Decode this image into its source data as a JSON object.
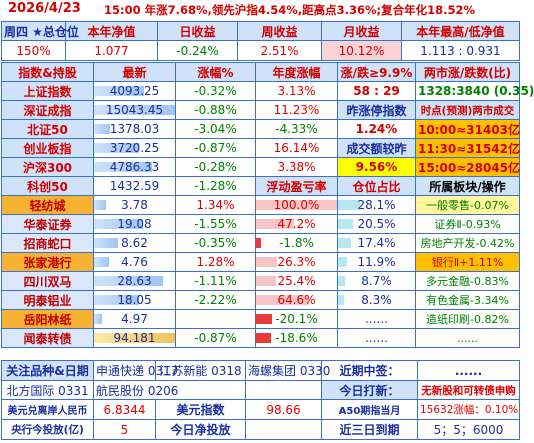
{
  "title": {
    "date": "2026/4/23",
    "message": "15:00 年涨7.68%,领先沪指4.54%,距高点3.36%;复合年化18.52%"
  },
  "summary": {
    "headers": [
      "周四 ★总仓位",
      "本年净值",
      "日收益",
      "周收益",
      "月收益",
      "本年最高/低净值"
    ],
    "values": [
      "150%",
      "1.077",
      "-0.24%",
      "2.51%",
      "10.12%",
      "1.113 : 0.931"
    ]
  },
  "index_header": [
    "指数&持股",
    "最新",
    "涨幅%",
    "年度涨幅",
    "涨/跌≥9.9%",
    "两市涨/跌数(比)"
  ],
  "indices": [
    {
      "name": "上证指数",
      "price": "4093.25",
      "chg": "-0.32%",
      "ytd": "3.13%",
      "c5": "58 : 29",
      "c6": "1328:3840 (0.35)"
    },
    {
      "name": "深证成指",
      "price": "15043.45",
      "chg": "-0.88%",
      "ytd": "11.23%",
      "c5": "昨涨停指数",
      "c6": "时点(预测)两市成交"
    },
    {
      "name": "北证50",
      "price": "1378.03",
      "chg": "-3.04%",
      "ytd": "-4.33%",
      "c5": "1.24%",
      "c6": "10:00≈31403亿"
    },
    {
      "name": "创业板指",
      "price": "3720.25",
      "chg": "-0.87%",
      "ytd": "16.14%",
      "c5": "成交额较昨",
      "c6": "11:30≈31542亿"
    },
    {
      "name": "沪深300",
      "price": "4786.33",
      "chg": "-0.28%",
      "ytd": "3.38%",
      "c5": "9.56%",
      "c6": "15:00≈28045亿"
    },
    {
      "name": "科创50",
      "price": "1432.59",
      "chg": "-1.28%",
      "ytd": "浮动盈亏率",
      "c5": "仓位占比",
      "c6": "所属板块/操作"
    }
  ],
  "stocks": [
    {
      "name": "轻纺城",
      "price": "3.78",
      "chg": "1.34%",
      "float": "100.0%",
      "fv": 1.0,
      "pos": "28.1%",
      "pv": 0.28,
      "sector": "一般零售-0.07%"
    },
    {
      "name": "华泰证券",
      "price": "19.08",
      "chg": "-1.55%",
      "float": "47.2%",
      "fv": 0.47,
      "pos": "20.5%",
      "pv": 0.2,
      "sector": "证券Ⅱ-0.93%"
    },
    {
      "name": "招商蛇口",
      "price": "8.62",
      "chg": "-0.35%",
      "float": "-1.8%",
      "fv": 0.02,
      "pos": "17.4%",
      "pv": 0.17,
      "sector": "房地产开发-0.42%"
    },
    {
      "name": "张家港行",
      "price": "4.76",
      "chg": "1.28%",
      "float": "26.3%",
      "fv": 0.26,
      "pos": "11.9%",
      "pv": 0.12,
      "sector": "银行Ⅱ+1.11%"
    },
    {
      "name": "四川双马",
      "price": "28.63",
      "chg": "-1.11%",
      "float": "25.4%",
      "fv": 0.25,
      "pos": "8.7%",
      "pv": 0.09,
      "sector": "多元金融-0.83%"
    },
    {
      "name": "明泰铝业",
      "price": "18.05",
      "chg": "-2.22%",
      "float": "64.6%",
      "fv": 0.65,
      "pos": "8.3%",
      "pv": 0.08,
      "sector": "有色金属-3.34%"
    },
    {
      "name": "岳阳林纸",
      "price": "4.97",
      "chg": "",
      "float": "-20.1%",
      "fv": 0.2,
      "pos": "......",
      "pv": 0,
      "sector": "造纸印刷-0.82%"
    },
    {
      "name": "闻泰转债",
      "price": "94.181",
      "chg": "-0.87%",
      "float": "-18.6%",
      "fv": 0.19,
      "pos": "......",
      "pv": 0,
      "sector": "......"
    }
  ],
  "watch": {
    "label": "关注品种&日期",
    "items": [
      "申通快递 0317",
      "江苏新能 0318",
      "海螺集团 0330"
    ],
    "items2": [
      "北方国际 0331",
      "航民股份 0206"
    ],
    "near_sign": "近期中签：",
    "near_val": "......",
    "today_label": "今日打新：",
    "today_val": "无新股和可转债申购"
  },
  "footer": {
    "r1": [
      "美元兑离岸人民币",
      "6.8344",
      "美元指数",
      "98.66",
      "A50期指当月",
      "15632涨幅：0.10%"
    ],
    "r2": [
      "央行今投放(亿)",
      "5",
      "今日净投放",
      "",
      "近三日到期",
      "5；5；6000"
    ]
  }
}
